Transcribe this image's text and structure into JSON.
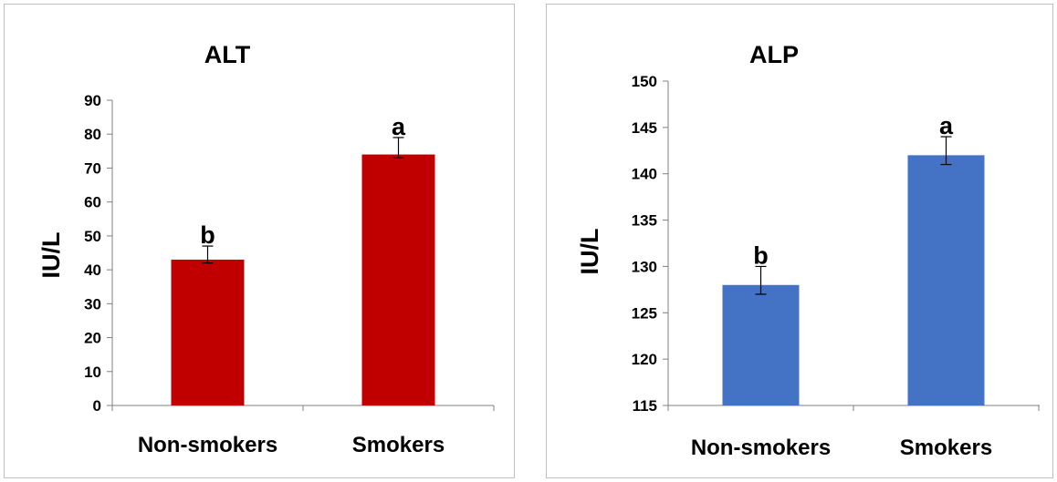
{
  "chart_data": [
    {
      "type": "bar",
      "title": "ALT",
      "xlabel": "",
      "ylabel": "IU/L",
      "ylim": [
        0,
        90
      ],
      "yticks": [
        0,
        10,
        20,
        30,
        40,
        50,
        60,
        70,
        80,
        90
      ],
      "categories": [
        "Non-smokers",
        "Smokers"
      ],
      "values": [
        43,
        74
      ],
      "error_upper": [
        47,
        79
      ],
      "error_lower": [
        42,
        73
      ],
      "significance_labels": [
        "b",
        "a"
      ],
      "color": "#C00000",
      "grid": false,
      "legend": "none"
    },
    {
      "type": "bar",
      "title": "ALP",
      "xlabel": "",
      "ylabel": "IU/L",
      "ylim": [
        115,
        150
      ],
      "yticks": [
        115,
        120,
        125,
        130,
        135,
        140,
        145,
        150
      ],
      "categories": [
        "Non-smokers",
        "Smokers"
      ],
      "values": [
        128,
        142
      ],
      "error_upper": [
        130,
        144
      ],
      "error_lower": [
        127,
        141
      ],
      "significance_labels": [
        "b",
        "a"
      ],
      "color": "#4472C4",
      "grid": false,
      "legend": "none"
    }
  ]
}
